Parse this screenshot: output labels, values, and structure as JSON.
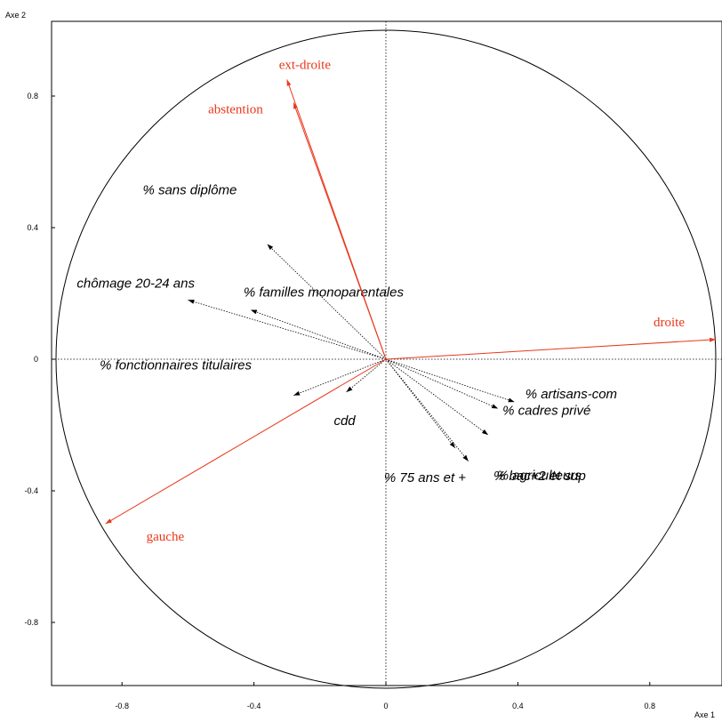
{
  "chart_data": {
    "type": "correlation-circle",
    "xlabel": "Axe 1",
    "ylabel": "Axe 2",
    "xlim": [
      -1.02,
      1.02
    ],
    "ylim": [
      -1.02,
      1.02
    ],
    "x_ticks": [
      {
        "value": -0.8,
        "label": "-0.8"
      },
      {
        "value": -0.4,
        "label": "-0.4"
      },
      {
        "value": 0,
        "label": "0"
      },
      {
        "value": 0.4,
        "label": "0.4"
      },
      {
        "value": 0.8,
        "label": "0.8"
      }
    ],
    "y_ticks": [
      {
        "value": 0.8,
        "label": "0.8"
      },
      {
        "value": 0.4,
        "label": "0.4"
      },
      {
        "value": 0,
        "label": "0"
      },
      {
        "value": -0.4,
        "label": "-0.4"
      },
      {
        "value": -0.8,
        "label": "-0.8"
      }
    ],
    "unit_circle": true,
    "reference_lines": "dotted axes through origin",
    "active_variables": [
      {
        "label": "ext-droite",
        "x": -0.3,
        "y": 0.85
      },
      {
        "label": "abstention",
        "x": -0.28,
        "y": 0.78
      },
      {
        "label": "droite",
        "x": 1.0,
        "y": 0.06
      },
      {
        "label": "gauche",
        "x": -0.85,
        "y": -0.5
      }
    ],
    "supplementary_variables": [
      {
        "label": "% sans diplôme",
        "x": -0.36,
        "y": 0.35
      },
      {
        "label": "chômage 20-24 ans",
        "x": -0.6,
        "y": 0.18
      },
      {
        "label": "% familles monoparentales",
        "x": -0.41,
        "y": 0.15
      },
      {
        "label": "% fonctionnaires titulaires",
        "x": -0.28,
        "y": -0.11
      },
      {
        "label": "cdd",
        "x": -0.12,
        "y": -0.1
      },
      {
        "label": "% artisans-com",
        "x": 0.39,
        "y": -0.13
      },
      {
        "label": "% cadres privé",
        "x": 0.34,
        "y": -0.15
      },
      {
        "label": "% bac+2 et sup",
        "x": 0.31,
        "y": -0.23
      },
      {
        "label": "% agriculteurs",
        "x": 0.25,
        "y": -0.31
      },
      {
        "label": "% 75 ans et +",
        "x": 0.21,
        "y": -0.27
      }
    ],
    "colors": {
      "active": "#e8381b",
      "supplementary": "#000000",
      "frame": "#000000"
    }
  }
}
